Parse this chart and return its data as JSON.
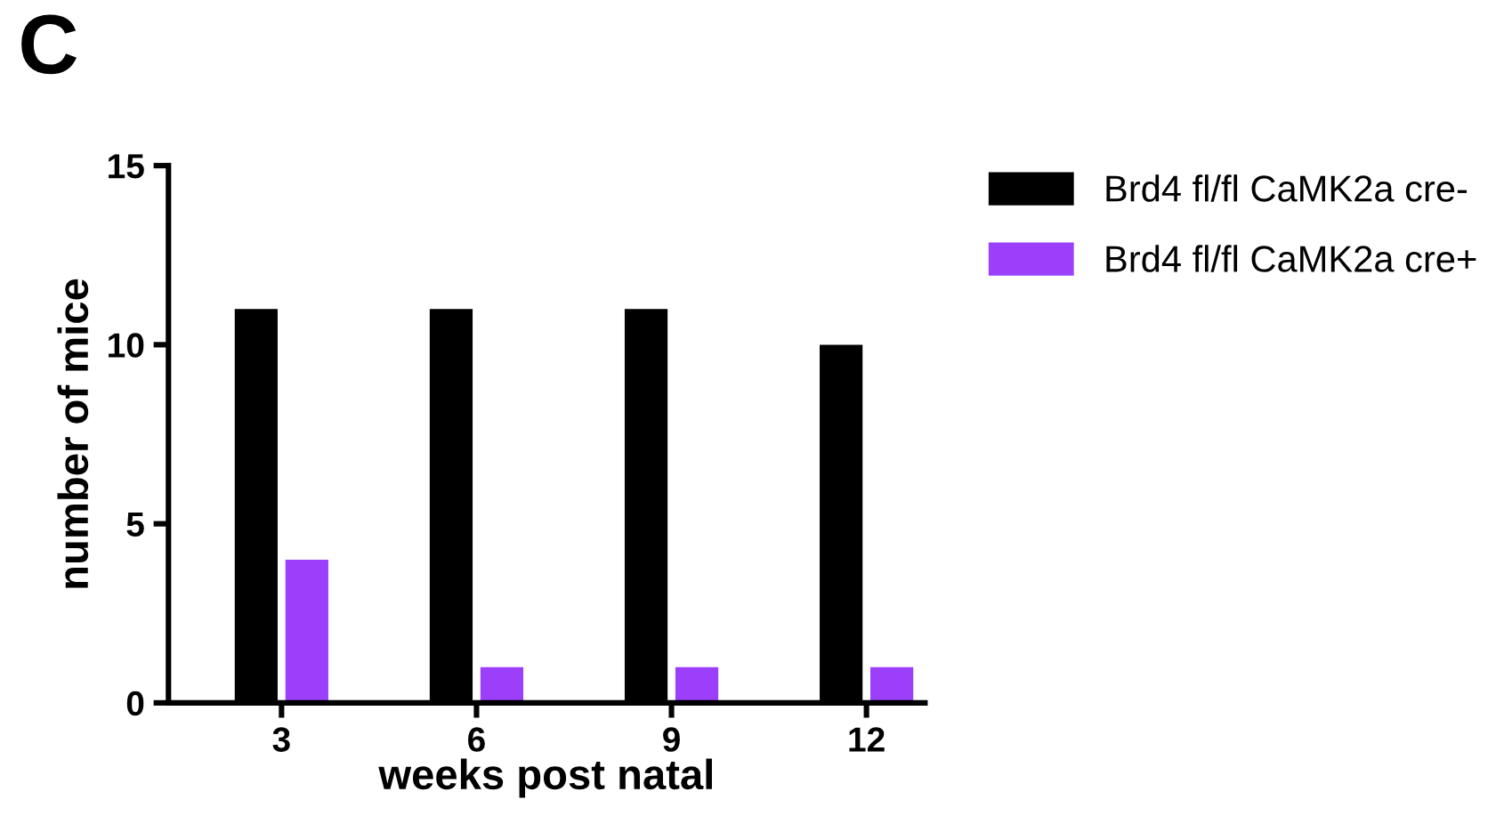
{
  "chart_data": {
    "type": "bar",
    "title": "C",
    "xlabel": "weeks post natal",
    "ylabel": "number of mice",
    "categories": [
      "3",
      "6",
      "9",
      "12"
    ],
    "series": [
      {
        "name": "Brd4 fl/fl CaMK2a cre-",
        "color": "#000000",
        "values": [
          11,
          11,
          11,
          10
        ]
      },
      {
        "name": "Brd4 fl/fl CaMK2a cre+",
        "color": "#9b3ffb",
        "values": [
          4,
          1,
          1,
          1
        ]
      }
    ],
    "ylim": [
      0,
      15
    ],
    "yticks": [
      0,
      5,
      10,
      15
    ],
    "grid": false,
    "legend": "top right"
  }
}
